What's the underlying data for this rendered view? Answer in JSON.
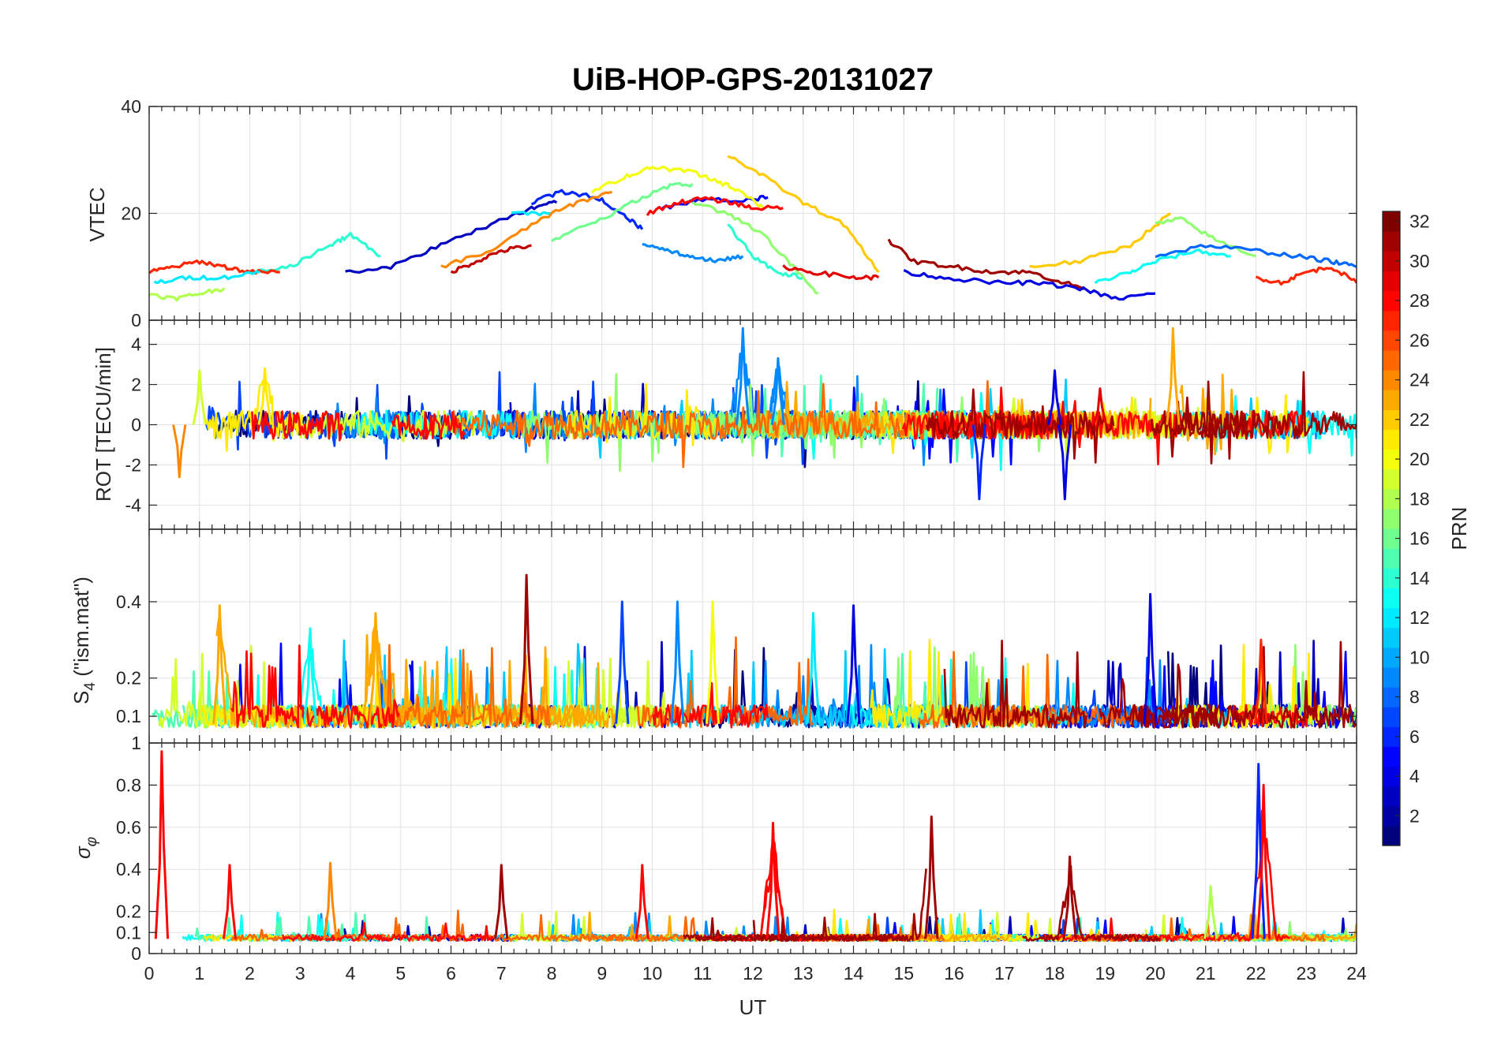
{
  "chart_data": {
    "type": "line",
    "title": "UiB-HOP-GPS-20131027",
    "xlabel": "UT",
    "xlim": [
      0,
      24
    ],
    "x_ticks": [
      "0",
      "1",
      "2",
      "3",
      "4",
      "5",
      "6",
      "7",
      "8",
      "9",
      "10",
      "11",
      "12",
      "13",
      "14",
      "15",
      "16",
      "17",
      "18",
      "19",
      "20",
      "21",
      "22",
      "23",
      "24"
    ],
    "grid": true,
    "colorbar": {
      "label": "PRN",
      "range": [
        1,
        32
      ],
      "ticks": [
        "2",
        "4",
        "6",
        "8",
        "10",
        "12",
        "14",
        "16",
        "18",
        "20",
        "22",
        "24",
        "26",
        "28",
        "30",
        "32"
      ],
      "colormap": "jet",
      "placement": "right"
    },
    "panels": [
      {
        "id": "vtec",
        "ylabel": "VTEC",
        "ylim": [
          0,
          40
        ],
        "yticks": [
          0,
          20,
          40
        ],
        "ytick_labels": [
          "0",
          "20",
          "40"
        ],
        "series": [
          {
            "prn": 3,
            "x": [
              3.9,
              4.8,
              5.8,
              6.8,
              7.6,
              8.1
            ],
            "y": [
              9,
              10,
              14,
              18,
              21,
              22
            ]
          },
          {
            "prn": 6,
            "x": [
              7.6,
              8.2,
              8.9,
              9.4,
              9.8
            ],
            "y": [
              22,
              24,
              23,
              20,
              17
            ]
          },
          {
            "prn": 5,
            "x": [
              10.2,
              11.0,
              11.8,
              12.3
            ],
            "y": [
              21,
              22.5,
              22.5,
              23
            ]
          },
          {
            "prn": 9,
            "x": [
              9.8,
              10.3,
              10.8,
              11.3,
              11.8
            ],
            "y": [
              14,
              13,
              12,
              11,
              12
            ]
          },
          {
            "prn": 12,
            "x": [
              7.2,
              8.0
            ],
            "y": [
              20,
              20
            ]
          },
          {
            "prn": 14,
            "x": [
              2.0,
              2.8,
              3.6,
              4.0,
              4.6
            ],
            "y": [
              9,
              10,
              14,
              16,
              12
            ]
          },
          {
            "prn": 14,
            "x": [
              11.5,
              12.0,
              12.5,
              13.0
            ],
            "y": [
              18,
              12,
              9,
              8
            ]
          },
          {
            "prn": 16,
            "x": [
              8.0,
              8.8,
              9.6,
              10.3,
              10.8
            ],
            "y": [
              15,
              18,
              22,
              25,
              25.5
            ]
          },
          {
            "prn": 17,
            "x": [
              10.8,
              11.5,
              12.2,
              12.8,
              13.3
            ],
            "y": [
              22,
              20,
              16,
              10,
              5
            ]
          },
          {
            "prn": 20,
            "x": [
              8.8,
              9.5,
              10.0,
              10.7,
              11.3,
              11.8,
              12.2
            ],
            "y": [
              24,
              27,
              28.5,
              28,
              26,
              24,
              21
            ]
          },
          {
            "prn": 22,
            "x": [
              11.5,
              12.2,
              13.0,
              13.8,
              14.5
            ],
            "y": [
              31,
              27,
              22,
              18,
              9
            ]
          },
          {
            "prn": 24,
            "x": [
              5.8,
              6.8,
              7.8,
              8.5,
              9.2
            ],
            "y": [
              10,
              13,
              19,
              22,
              24
            ]
          },
          {
            "prn": 28,
            "x": [
              9.9,
              10.5,
              11.0,
              11.6,
              12.0,
              12.6
            ],
            "y": [
              20,
              22,
              22.8,
              22,
              21,
              21
            ]
          },
          {
            "prn": 30,
            "x": [
              6.0,
              6.5,
              7.0,
              7.6
            ],
            "y": [
              9,
              11,
              13,
              14
            ]
          },
          {
            "prn": 27,
            "x": [
              0,
              0.5,
              1.0,
              1.5,
              2.0,
              2.6
            ],
            "y": [
              9,
              10,
              11,
              10,
              9,
              9
            ]
          },
          {
            "prn": 12,
            "x": [
              0.1,
              0.8,
              1.5,
              2.2
            ],
            "y": [
              7,
              8,
              8,
              9
            ]
          },
          {
            "prn": 18,
            "x": [
              0,
              0.5,
              1.0,
              1.5
            ],
            "y": [
              5,
              4,
              5,
              6
            ]
          },
          {
            "prn": 31,
            "x": [
              14.7,
              15.2,
              16.0,
              16.8,
              17.5,
              18.2,
              18.6
            ],
            "y": [
              15,
              11,
              10,
              9,
              9,
              7,
              6
            ]
          },
          {
            "prn": 4,
            "x": [
              15.0,
              15.8,
              16.8,
              17.6,
              18.5,
              19.2,
              20.0
            ],
            "y": [
              9,
              8,
              7,
              7,
              6,
              4,
              5
            ]
          },
          {
            "prn": 13,
            "x": [
              18.8,
              19.5,
              20.0,
              20.8,
              21.5
            ],
            "y": [
              7,
              9,
              11,
              13,
              12
            ]
          },
          {
            "prn": 22,
            "x": [
              17.5,
              18.5,
              19.5,
              20.3
            ],
            "y": [
              10,
              11,
              14,
              20
            ]
          },
          {
            "prn": 17,
            "x": [
              20.0,
              20.5,
              21.2,
              22.0
            ],
            "y": [
              18,
              19,
              15,
              12
            ]
          },
          {
            "prn": 8,
            "x": [
              20.0,
              21.0,
              22.0,
              22.8,
              23.5,
              24.0
            ],
            "y": [
              12,
              14,
              13,
              12,
              11,
              10
            ]
          },
          {
            "prn": 27,
            "x": [
              22.0,
              22.5,
              23.0,
              23.5,
              24.0
            ],
            "y": [
              8,
              7,
              9,
              10,
              7
            ]
          },
          {
            "prn": 29,
            "x": [
              12.6,
              13.2,
              14.0,
              14.5
            ],
            "y": [
              10,
              9,
              8,
              8
            ]
          }
        ]
      },
      {
        "id": "rot",
        "ylabel": "ROT [TECU/min]",
        "ylim": [
          -5.2,
          5.2
        ],
        "yticks": [
          -4,
          -2,
          0,
          2,
          4
        ],
        "ytick_labels": [
          "-4",
          "-2",
          "0",
          "2",
          "4"
        ],
        "spikes": [
          {
            "prn": 9,
            "x": 11.8,
            "y": 4.8
          },
          {
            "prn": 9,
            "x": 12.5,
            "y": 3.3
          },
          {
            "prn": 23,
            "x": 20.35,
            "y": 4.8
          },
          {
            "prn": 6,
            "x": 16.5,
            "y": -3.7
          },
          {
            "prn": 4,
            "x": 18.2,
            "y": -3.7
          },
          {
            "prn": 24,
            "x": 0.6,
            "y": -2.6
          },
          {
            "prn": 19,
            "x": 1.0,
            "y": 2.7
          },
          {
            "prn": 21,
            "x": 2.3,
            "y": 2.8
          },
          {
            "prn": 4,
            "x": 18.0,
            "y": 2.7
          },
          {
            "prn": 29,
            "x": 18.9,
            "y": 1.8
          }
        ]
      },
      {
        "id": "s4",
        "ylabel": "S4 (\"ism.mat\")",
        "ylim": [
          0.03,
          0.59
        ],
        "yticks": [
          0.1,
          0.2,
          0.4
        ],
        "ytick_labels": [
          "0.1",
          "0.2",
          "0.4"
        ],
        "spikes": [
          {
            "prn": 31,
            "x": 7.5,
            "y": 0.47
          },
          {
            "prn": 4,
            "x": 19.9,
            "y": 0.42
          },
          {
            "prn": 23,
            "x": 1.4,
            "y": 0.39
          },
          {
            "prn": 23,
            "x": 4.5,
            "y": 0.37
          },
          {
            "prn": 7,
            "x": 9.4,
            "y": 0.4
          },
          {
            "prn": 9,
            "x": 10.5,
            "y": 0.4
          },
          {
            "prn": 20,
            "x": 11.2,
            "y": 0.4
          },
          {
            "prn": 4,
            "x": 14.0,
            "y": 0.39
          },
          {
            "prn": 12,
            "x": 13.2,
            "y": 0.37
          },
          {
            "prn": 27,
            "x": 22.1,
            "y": 0.3
          },
          {
            "prn": 13,
            "x": 3.2,
            "y": 0.33
          }
        ]
      },
      {
        "id": "sigphi",
        "ylabel": "σφ",
        "ylim": [
          0,
          1
        ],
        "yticks": [
          0,
          0.1,
          0.2,
          0.4,
          0.6,
          0.8,
          1
        ],
        "ytick_labels": [
          "0",
          "0.1",
          "0.2",
          "0.4",
          "0.6",
          "0.8",
          "1"
        ],
        "spikes": [
          {
            "prn": 28,
            "x": 0.25,
            "y": 0.96
          },
          {
            "prn": 28,
            "x": 1.6,
            "y": 0.42
          },
          {
            "prn": 24,
            "x": 3.6,
            "y": 0.43
          },
          {
            "prn": 31,
            "x": 7.0,
            "y": 0.42
          },
          {
            "prn": 28,
            "x": 9.8,
            "y": 0.42
          },
          {
            "prn": 28,
            "x": 12.4,
            "y": 0.62
          },
          {
            "prn": 31,
            "x": 15.55,
            "y": 0.65
          },
          {
            "prn": 31,
            "x": 18.3,
            "y": 0.46
          },
          {
            "prn": 6,
            "x": 22.05,
            "y": 0.9
          },
          {
            "prn": 28,
            "x": 22.15,
            "y": 0.8
          },
          {
            "prn": 18,
            "x": 21.1,
            "y": 0.32
          }
        ]
      }
    ]
  }
}
